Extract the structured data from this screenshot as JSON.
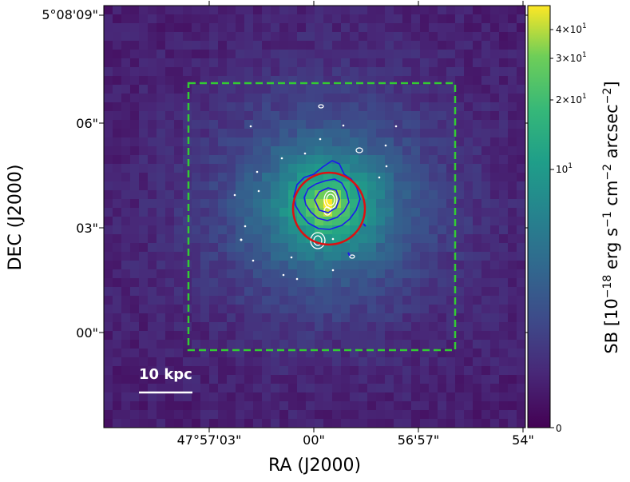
{
  "figure": {
    "xlabel": "RA (J2000)",
    "ylabel": "DEC (J2000)",
    "x_ticks": [
      "47°57'03\"",
      "00\"",
      "56'57\"",
      "54\""
    ],
    "y_ticks": [
      "5°08'09\"",
      "06\"",
      "03\"",
      "00\""
    ],
    "scalebar_label": "10 kpc",
    "colorbar": {
      "label": "SB [10$^{-18}$ erg s$^{-1}$ cm$^{-2}$ arcsec$^{-2}$]",
      "ticks": [
        {
          "mant": "4",
          "exp": "1"
        },
        {
          "mant": "3",
          "exp": "1"
        },
        {
          "mant": "2",
          "exp": "1"
        },
        {
          "mant": "",
          "exp": "1"
        },
        {
          "mant": "0",
          "exp": ""
        }
      ],
      "colormap": "viridis"
    },
    "colors": {
      "box": "#33cc33",
      "circle": "#dd1111",
      "contour_blue": "#1a1aee",
      "contour_white": "#ffffff"
    }
  }
}
